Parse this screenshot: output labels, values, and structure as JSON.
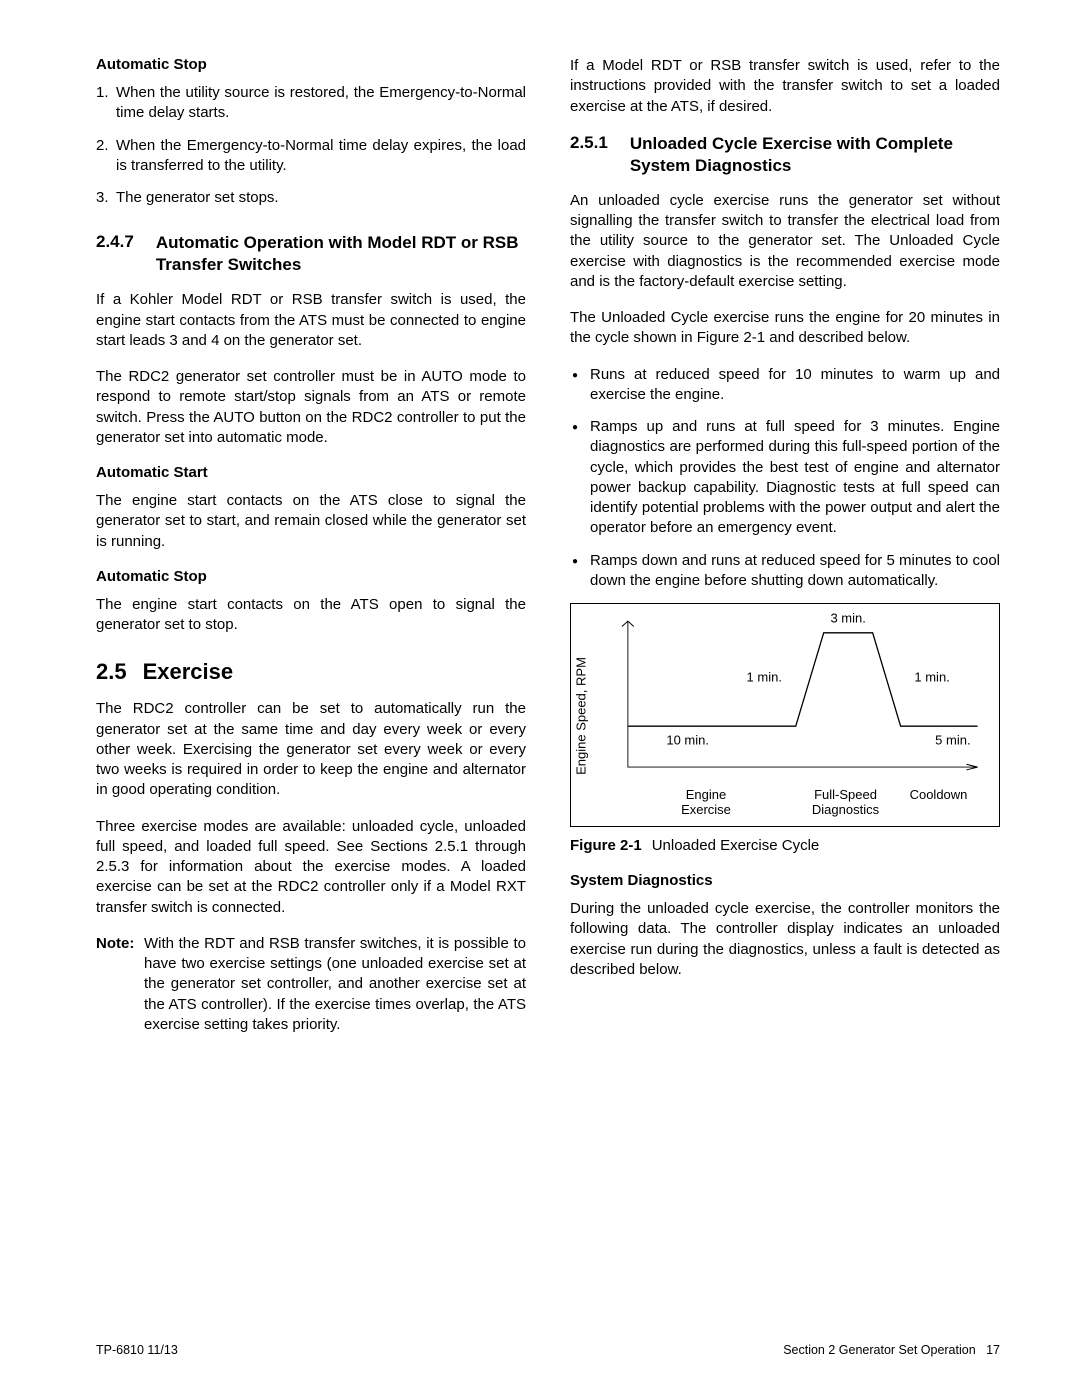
{
  "left": {
    "auto_stop_heading": "Automatic Stop",
    "auto_stop_items": [
      "When the utility source is restored, the Emergency-to-Normal time delay starts.",
      "When the Emergency-to-Normal time delay expires, the load is transferred to the utility.",
      "The generator set stops."
    ],
    "s247_no": "2.4.7",
    "s247_title": "Automatic Operation with Model RDT or RSB Transfer Switches",
    "s247_p1": "If a Kohler Model RDT or RSB transfer switch is used, the engine start contacts from the ATS must be connected to engine start leads 3 and 4 on the generator set.",
    "s247_p2": "The RDC2 generator set controller must be in AUTO mode to respond to remote start/stop signals from an ATS or remote switch.  Press the AUTO button on the RDC2 controller to put the generator set into automatic mode.",
    "auto_start_heading": "Automatic Start",
    "auto_start_p": "The engine start contacts on the ATS close to signal the generator set to start, and remain closed while the generator set is running.",
    "auto_stop2_heading": "Automatic Stop",
    "auto_stop2_p": "The engine start contacts on the ATS open to signal the generator set to stop.",
    "s25_no": "2.5",
    "s25_title": "Exercise",
    "s25_p1": "The RDC2 controller can be set to automatically run the generator set at the same time and day every week or every other week.  Exercising the generator set every week or every two weeks is required in order to keep the engine and alternator in good operating condition.",
    "s25_p2": "Three exercise modes are available: unloaded cycle, unloaded full speed, and loaded full speed.  See Sections 2.5.1 through 2.5.3 for information about the exercise modes.  A loaded exercise can be set at the RDC2 controller only if a Model RXT transfer switch is connected.",
    "note_label": "Note:",
    "note_body": "With the RDT and RSB transfer switches, it is possible to have two exercise settings (one unloaded exercise set at the generator set controller, and another exercise set at the ATS controller).  If the exercise times overlap, the ATS exercise setting takes priority."
  },
  "right": {
    "lead_p": "If a Model RDT or RSB transfer switch is used, refer to the instructions provided with the transfer switch to set a loaded exercise at the ATS, if desired.",
    "s251_no": "2.5.1",
    "s251_title": "Unloaded Cycle Exercise with Complete System Diagnostics",
    "s251_p1": "An unloaded cycle exercise runs the generator set without signalling the transfer switch to transfer the electrical load from the utility source to the generator set. The Unloaded Cycle exercise with diagnostics is the recommended exercise mode and is the factory-default exercise setting.",
    "s251_p2": "The Unloaded Cycle exercise runs the engine for 20 minutes in the cycle shown in Figure 2-1 and described below.",
    "bullets": [
      "Runs at reduced speed for 10 minutes to warm up and exercise the engine.",
      "Ramps up and runs at full speed for 3 minutes. Engine diagnostics are performed during this full-speed portion of the cycle, which provides the best test of engine and alternator power backup capability.  Diagnostic tests at full speed can identify potential problems with the power output and alert the operator before an emergency event.",
      "Ramps down and runs at reduced speed for 5 minutes to cool down the engine before shutting down automatically."
    ],
    "figure": {
      "ylabel": "Engine Speed, RPM",
      "phase_labels": [
        "Engine\nExercise",
        "Full-Speed\nDiagnostics",
        "Cooldown"
      ],
      "phase_widths": [
        0.5,
        0.25,
        0.25
      ],
      "annotations": {
        "ten_min": "10 min.",
        "one_min_up": "1 min.",
        "three_min": "3 min.",
        "one_min_down": "1 min.",
        "five_min": "5 min."
      },
      "low_level": 0.28,
      "high_level": 0.92,
      "pts_x": [
        0.0,
        0.48,
        0.56,
        0.7,
        0.78,
        1.0
      ],
      "line_color": "#000000",
      "axis_color": "#000000",
      "fignum": "Figure 2-1",
      "figtitle": "Unloaded Exercise Cycle"
    },
    "sysdiag_heading": "System Diagnostics",
    "sysdiag_p": "During the unloaded cycle exercise, the controller monitors the following data.  The controller display indicates an unloaded exercise run during the diagnostics, unless a fault is detected as described below."
  },
  "footer": {
    "left": "TP-6810  11/13",
    "right_section": "Section 2  Generator Set Operation",
    "right_page": "17"
  }
}
